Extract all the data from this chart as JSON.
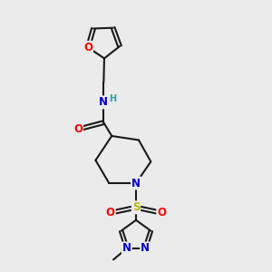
{
  "bg_color": "#ebebeb",
  "bond_color": "#1a1a1a",
  "bond_width": 1.5,
  "atom_colors": {
    "O": "#ff0000",
    "N": "#0000cc",
    "S": "#b8b800",
    "H": "#2aa0a0",
    "C": "#1a1a1a"
  },
  "font_size_atom": 8.5,
  "font_size_h": 7.0
}
